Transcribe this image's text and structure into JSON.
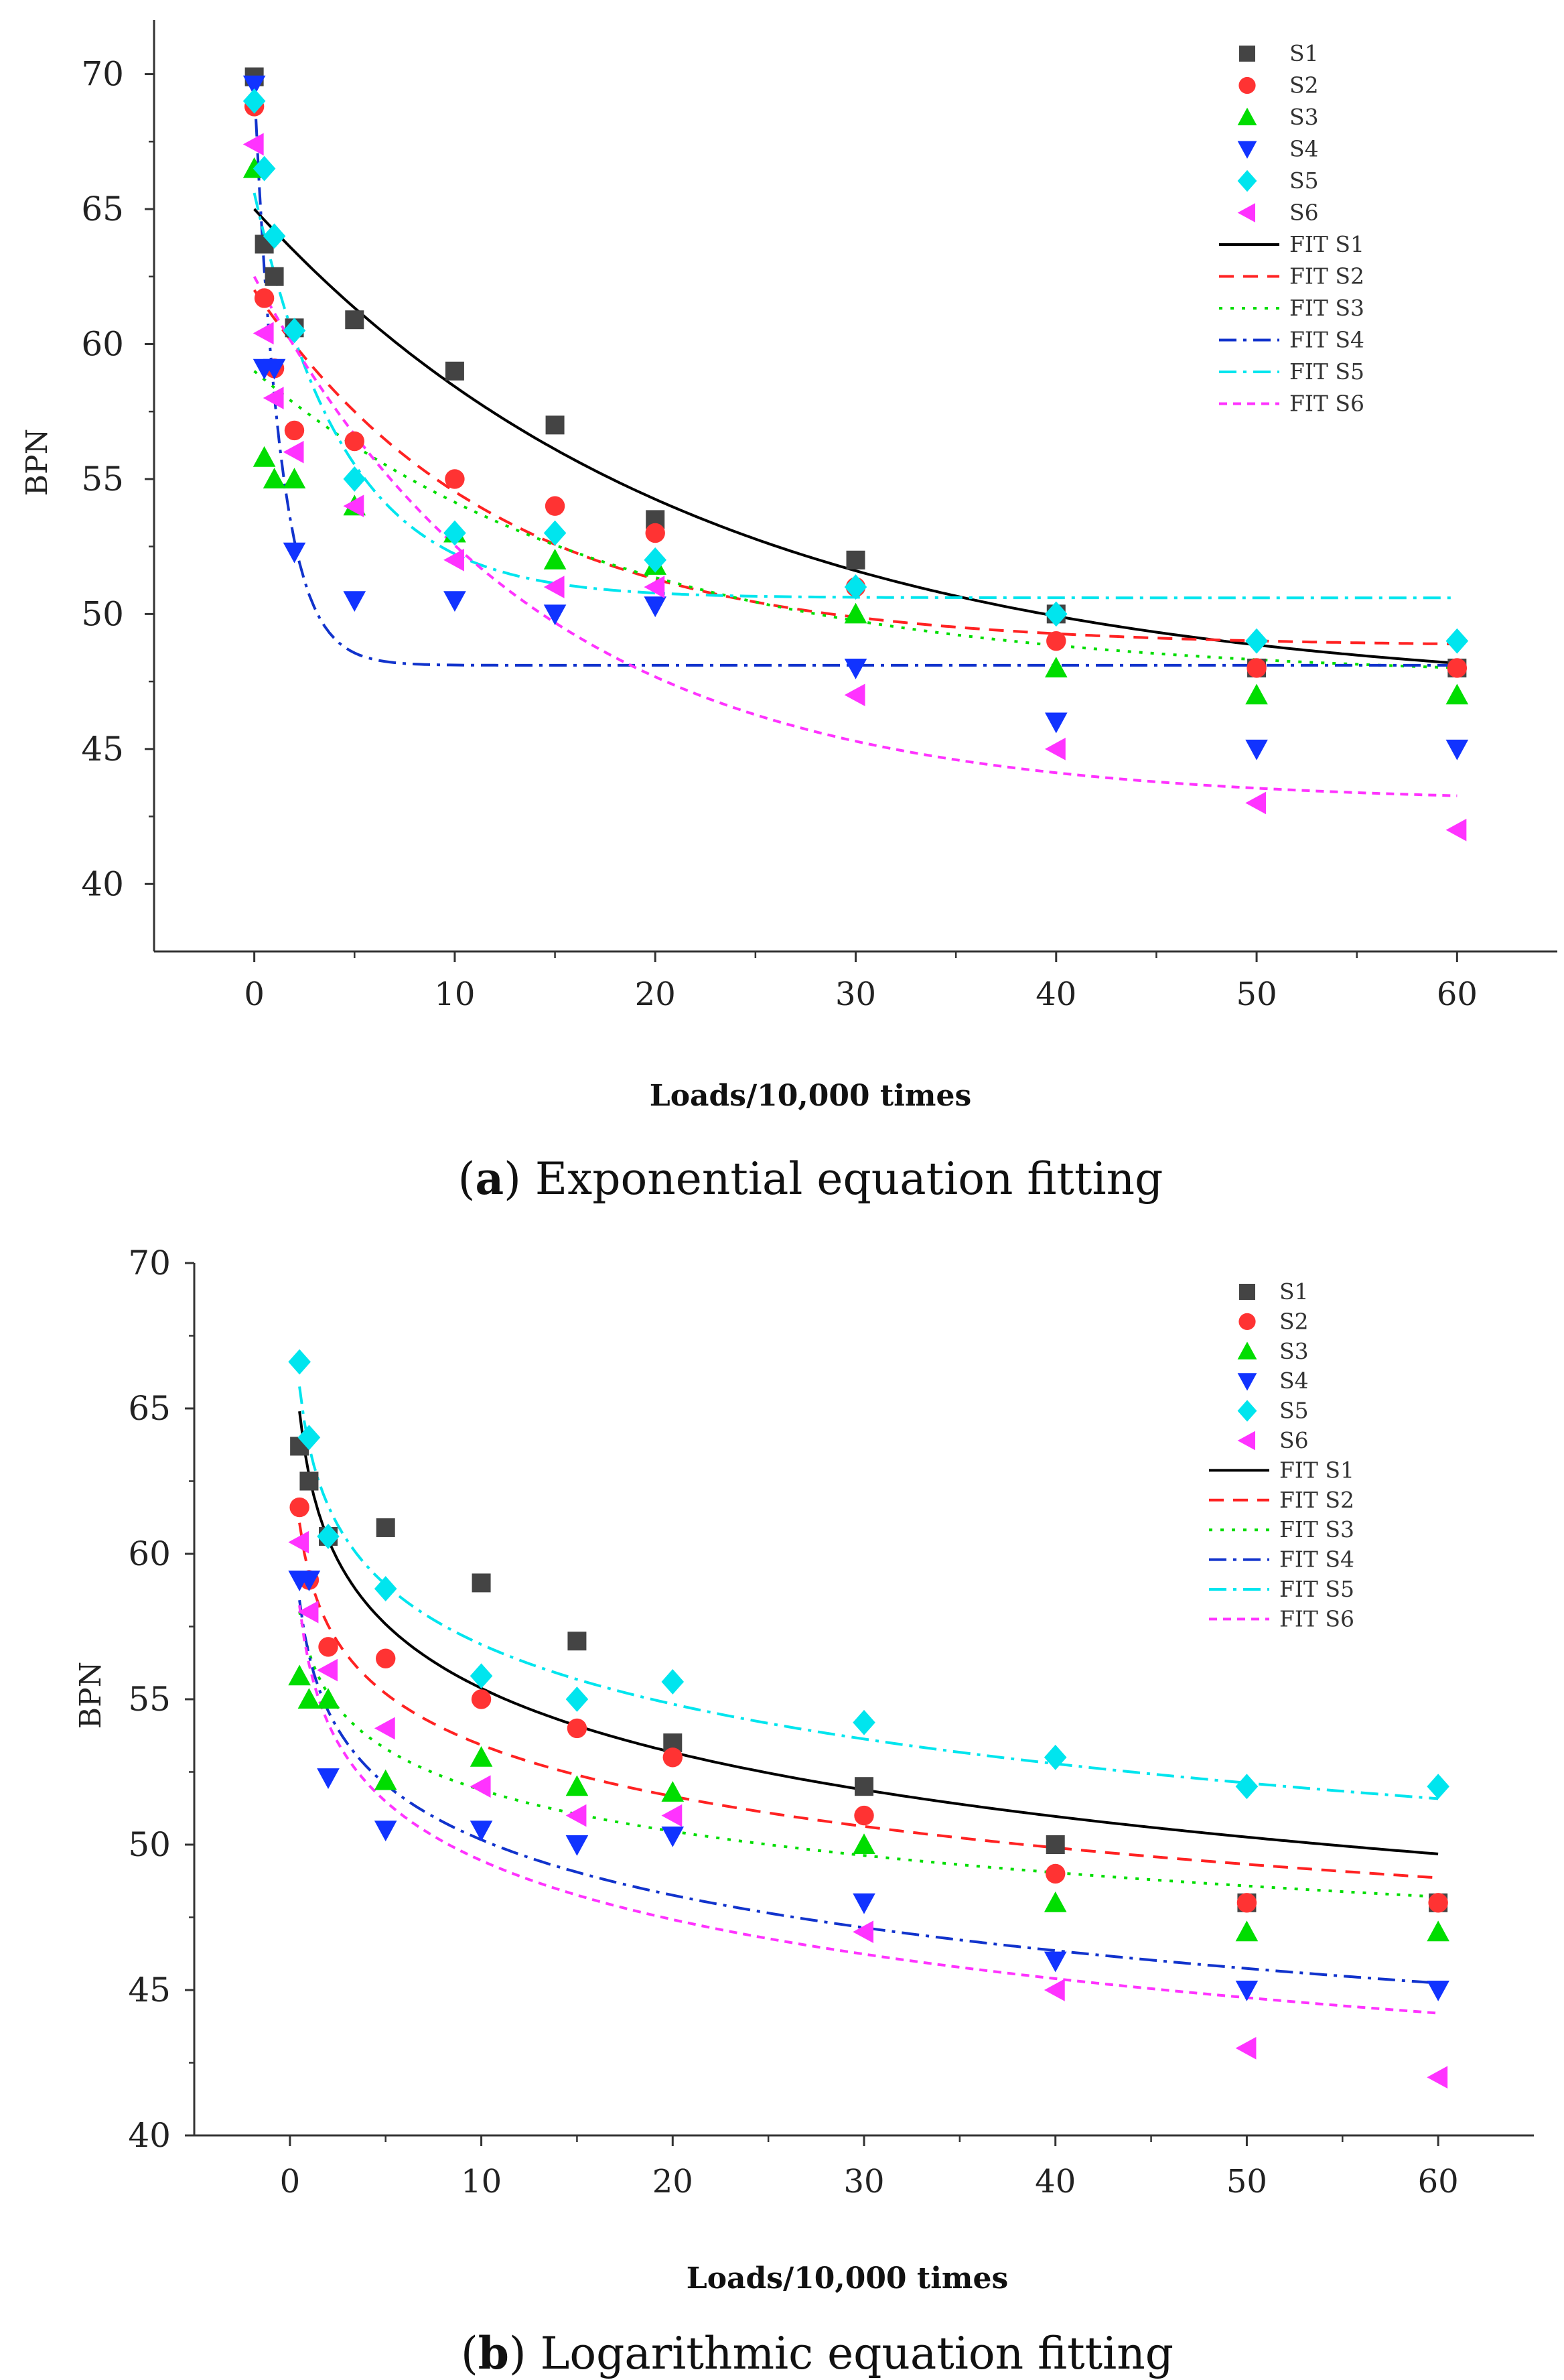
{
  "chart_data": [
    {
      "type": "scatter",
      "caption_letter": "a",
      "caption_text": "Exponential equation fitting",
      "xlabel": "Loads/10,000 times",
      "ylabel": "BPN",
      "xticks": [
        0,
        10,
        20,
        30,
        40,
        50,
        60
      ],
      "yticks": [
        40,
        45,
        50,
        55,
        60,
        65,
        70
      ],
      "xlim": [
        -5,
        65
      ],
      "ylim": [
        37.5,
        72
      ],
      "legend_position": "top-right",
      "series": [
        {
          "name": "S1",
          "marker": "square",
          "color": "#444444",
          "points": [
            [
              0,
              69.9
            ],
            [
              0.5,
              63.7
            ],
            [
              1,
              62.5
            ],
            [
              2,
              60.6
            ],
            [
              5,
              60.9
            ],
            [
              10,
              59.0
            ],
            [
              15,
              57.0
            ],
            [
              20,
              53.5
            ],
            [
              30,
              52.0
            ],
            [
              40,
              50.0
            ],
            [
              50,
              48.0
            ],
            [
              60,
              48.0
            ]
          ]
        },
        {
          "name": "S2",
          "marker": "circle",
          "color": "#ff3333",
          "points": [
            [
              0,
              68.8
            ],
            [
              0.5,
              61.7
            ],
            [
              1,
              59.1
            ],
            [
              2,
              56.8
            ],
            [
              5,
              56.4
            ],
            [
              10,
              55.0
            ],
            [
              15,
              54.0
            ],
            [
              20,
              53.0
            ],
            [
              30,
              51.0
            ],
            [
              40,
              49.0
            ],
            [
              50,
              48.0
            ],
            [
              60,
              48.0
            ]
          ]
        },
        {
          "name": "S3",
          "marker": "triangle-up",
          "color": "#00dd00",
          "points": [
            [
              0,
              66.5
            ],
            [
              0.5,
              55.8
            ],
            [
              1,
              55.0
            ],
            [
              2,
              55.0
            ],
            [
              5,
              54.0
            ],
            [
              10,
              53.0
            ],
            [
              15,
              52.0
            ],
            [
              20,
              51.8
            ],
            [
              30,
              50.0
            ],
            [
              40,
              48.0
            ],
            [
              50,
              47.0
            ],
            [
              60,
              47.0
            ]
          ]
        },
        {
          "name": "S4",
          "marker": "triangle-down",
          "color": "#1133ff",
          "points": [
            [
              0,
              69.6
            ],
            [
              0.5,
              59.1
            ],
            [
              1,
              59.1
            ],
            [
              2,
              52.3
            ],
            [
              5,
              50.5
            ],
            [
              10,
              50.5
            ],
            [
              15,
              50.0
            ],
            [
              20,
              50.3
            ],
            [
              30,
              48.0
            ],
            [
              40,
              46.0
            ],
            [
              50,
              45.0
            ],
            [
              60,
              45.0
            ]
          ]
        },
        {
          "name": "S5",
          "marker": "diamond",
          "color": "#00e5ee",
          "points": [
            [
              0,
              69.0
            ],
            [
              0.5,
              66.5
            ],
            [
              1,
              64.0
            ],
            [
              2,
              60.5
            ],
            [
              5,
              55.0
            ],
            [
              10,
              53.0
            ],
            [
              15,
              53.0
            ],
            [
              20,
              52.0
            ],
            [
              30,
              51.0
            ],
            [
              40,
              50.0
            ],
            [
              50,
              49.0
            ],
            [
              60,
              49.0
            ]
          ]
        },
        {
          "name": "S6",
          "marker": "triangle-left",
          "color": "#ff33ff",
          "points": [
            [
              0,
              67.4
            ],
            [
              0.5,
              60.4
            ],
            [
              1,
              58.0
            ],
            [
              2,
              56.0
            ],
            [
              5,
              54.0
            ],
            [
              10,
              52.0
            ],
            [
              15,
              51.0
            ],
            [
              20,
              51.0
            ],
            [
              30,
              47.0
            ],
            [
              40,
              45.0
            ],
            [
              50,
              43.0
            ],
            [
              60,
              42.0
            ]
          ]
        }
      ],
      "fits": [
        {
          "name": "FIT S1",
          "color": "#000000",
          "dash": "solid",
          "model": "exp",
          "a": 47.0,
          "b": 18.0,
          "tau": 22.0
        },
        {
          "name": "FIT S2",
          "color": "#ff2222",
          "dash": "dash",
          "model": "exp",
          "a": 48.8,
          "b": 13.2,
          "tau": 12.0
        },
        {
          "name": "FIT S3",
          "color": "#00dd00",
          "dash": "dot",
          "model": "exp",
          "a": 47.6,
          "b": 11.4,
          "tau": 18.0
        },
        {
          "name": "FIT S4",
          "color": "#1133cc",
          "dash": "dashdot",
          "model": "exp",
          "a": 48.1,
          "b": 21.5,
          "tau": 1.3
        },
        {
          "name": "FIT S5",
          "color": "#00e5ee",
          "dash": "dashdot",
          "model": "exp",
          "a": 50.6,
          "b": 15.0,
          "tau": 4.5
        },
        {
          "name": "FIT S6",
          "color": "#ff33ff",
          "dash": "shortdash",
          "model": "exp",
          "a": 43.0,
          "b": 19.5,
          "tau": 14.0
        }
      ]
    },
    {
      "type": "scatter",
      "caption_letter": "b",
      "caption_text": "Logarithmic equation fitting",
      "xlabel": "Loads/10,000 times",
      "ylabel": "BPN",
      "xticks": [
        0,
        10,
        20,
        30,
        40,
        50,
        60
      ],
      "yticks": [
        40,
        45,
        50,
        55,
        60,
        65,
        70
      ],
      "xlim": [
        -5,
        65
      ],
      "ylim": [
        40,
        70
      ],
      "legend_position": "top-right",
      "series": [
        {
          "name": "S1",
          "marker": "square",
          "color": "#444444",
          "points": [
            [
              0.5,
              63.7
            ],
            [
              1,
              62.5
            ],
            [
              2,
              60.6
            ],
            [
              5,
              60.9
            ],
            [
              10,
              59.0
            ],
            [
              15,
              57.0
            ],
            [
              20,
              53.5
            ],
            [
              30,
              52.0
            ],
            [
              40,
              50.0
            ],
            [
              50,
              48.0
            ],
            [
              60,
              48.0
            ]
          ]
        },
        {
          "name": "S2",
          "marker": "circle",
          "color": "#ff3333",
          "points": [
            [
              0.5,
              61.6
            ],
            [
              1,
              59.1
            ],
            [
              2,
              56.8
            ],
            [
              5,
              56.4
            ],
            [
              10,
              55.0
            ],
            [
              15,
              54.0
            ],
            [
              20,
              53.0
            ],
            [
              30,
              51.0
            ],
            [
              40,
              49.0
            ],
            [
              50,
              48.0
            ],
            [
              60,
              48.0
            ]
          ]
        },
        {
          "name": "S3",
          "marker": "triangle-up",
          "color": "#00dd00",
          "points": [
            [
              0.5,
              55.8
            ],
            [
              1,
              55.0
            ],
            [
              2,
              55.0
            ],
            [
              5,
              52.2
            ],
            [
              10,
              53.0
            ],
            [
              15,
              52.0
            ],
            [
              20,
              51.8
            ],
            [
              30,
              50.0
            ],
            [
              40,
              48.0
            ],
            [
              50,
              47.0
            ],
            [
              60,
              47.0
            ]
          ]
        },
        {
          "name": "S4",
          "marker": "triangle-down",
          "color": "#1133ff",
          "points": [
            [
              0.5,
              59.1
            ],
            [
              1,
              59.1
            ],
            [
              2,
              52.3
            ],
            [
              5,
              50.5
            ],
            [
              10,
              50.5
            ],
            [
              15,
              50.0
            ],
            [
              20,
              50.3
            ],
            [
              30,
              48.0
            ],
            [
              40,
              46.0
            ],
            [
              50,
              45.0
            ],
            [
              60,
              45.0
            ]
          ]
        },
        {
          "name": "S5",
          "marker": "diamond",
          "color": "#00e5ee",
          "points": [
            [
              0.5,
              66.6
            ],
            [
              1,
              64.0
            ],
            [
              2,
              60.6
            ],
            [
              5,
              58.8
            ],
            [
              10,
              55.8
            ],
            [
              15,
              55.0
            ],
            [
              20,
              55.6
            ],
            [
              30,
              54.2
            ],
            [
              40,
              53.0
            ],
            [
              50,
              52.0
            ],
            [
              60,
              52.0
            ]
          ]
        },
        {
          "name": "S6",
          "marker": "triangle-left",
          "color": "#ff33ff",
          "points": [
            [
              0.5,
              60.4
            ],
            [
              1,
              58.0
            ],
            [
              2,
              56.0
            ],
            [
              5,
              54.0
            ],
            [
              10,
              52.0
            ],
            [
              15,
              51.0
            ],
            [
              20,
              51.0
            ],
            [
              30,
              47.0
            ],
            [
              40,
              45.0
            ],
            [
              50,
              43.0
            ],
            [
              60,
              42.0
            ]
          ]
        }
      ],
      "fits": [
        {
          "name": "FIT S1",
          "color": "#000000",
          "dash": "solid",
          "model": "log",
          "a": 62.7,
          "b": -3.18
        },
        {
          "name": "FIT S2",
          "color": "#ff2222",
          "dash": "dash",
          "model": "log",
          "a": 59.3,
          "b": -2.55
        },
        {
          "name": "FIT S3",
          "color": "#00dd00",
          "dash": "dot",
          "model": "log",
          "a": 56.6,
          "b": -2.05
        },
        {
          "name": "FIT S4",
          "color": "#1133cc",
          "dash": "dashdot",
          "model": "log",
          "a": 56.5,
          "b": -2.75
        },
        {
          "name": "FIT S5",
          "color": "#00e5ee",
          "dash": "dashdot",
          "model": "log",
          "a": 63.7,
          "b": -2.96
        },
        {
          "name": "FIT S6",
          "color": "#ff33ff",
          "dash": "shortdash",
          "model": "log",
          "a": 56.2,
          "b": -2.93
        }
      ]
    }
  ]
}
